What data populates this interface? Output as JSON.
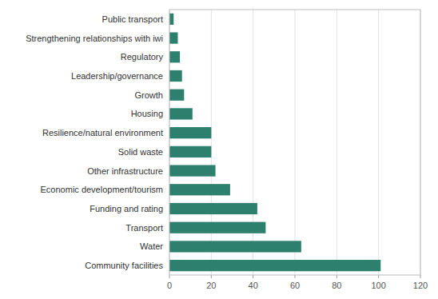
{
  "chart_data": {
    "type": "bar",
    "orientation": "horizontal",
    "categories": [
      "Community facilities",
      "Water",
      "Transport",
      "Funding and rating",
      "Economic development/tourism",
      "Other infrastructure",
      "Solid waste",
      "Resilience/natural environment",
      "Housing",
      "Growth",
      "Leadership/governance",
      "Regulatory",
      "Strengthening relationships with iwi",
      "Public transport"
    ],
    "values": [
      101,
      63,
      46,
      42,
      29,
      22,
      20,
      20,
      11,
      7,
      6,
      5,
      4,
      2
    ],
    "color": "#2d7f6e",
    "xlim": [
      0,
      120
    ],
    "xticks": [
      0,
      20,
      40,
      60,
      80,
      100,
      120
    ],
    "grid": true
  }
}
